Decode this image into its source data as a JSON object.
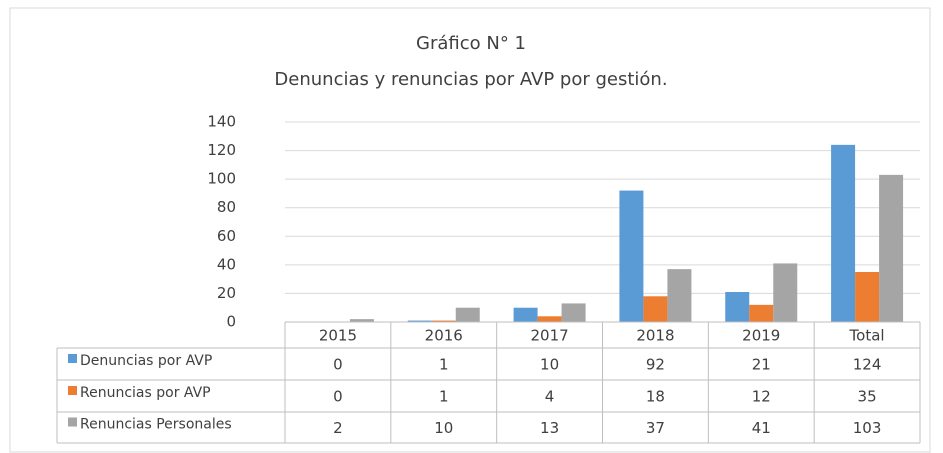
{
  "chart_data": {
    "type": "bar",
    "title": "Gráfico N° 1",
    "subtitle": "Denuncias y renuncias por AVP por gestión.",
    "categories": [
      "2015",
      "2016",
      "2017",
      "2018",
      "2019",
      "Total"
    ],
    "series": [
      {
        "name": "Denuncias por AVP",
        "color": "#5b9bd5",
        "values": [
          0,
          1,
          10,
          92,
          21,
          124
        ]
      },
      {
        "name": "Renuncias por AVP",
        "color": "#ed7d31",
        "values": [
          0,
          1,
          4,
          18,
          12,
          35
        ]
      },
      {
        "name": "Renuncias Personales",
        "color": "#a5a5a5",
        "values": [
          2,
          10,
          13,
          37,
          41,
          103
        ]
      }
    ],
    "ylim": [
      0,
      140
    ],
    "yticks": [
      0,
      20,
      40,
      60,
      80,
      100,
      120,
      140
    ],
    "grid": true
  }
}
